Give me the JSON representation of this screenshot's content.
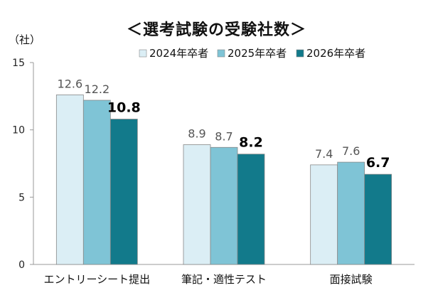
{
  "chart_data": {
    "type": "bar",
    "title": "＜選考試験の受験社数＞",
    "y_unit": "（社）",
    "xlabel": "",
    "ylabel": "",
    "categories": [
      "エントリーシート提出",
      "筆記・適性テスト",
      "面接試験"
    ],
    "series": [
      {
        "name": "2024年卒者",
        "values": [
          12.6,
          8.9,
          7.4
        ],
        "color": "#dbeef5"
      },
      {
        "name": "2025年卒者",
        "values": [
          12.2,
          8.7,
          7.6
        ],
        "color": "#7fc4d6"
      },
      {
        "name": "2026年卒者",
        "values": [
          10.8,
          8.2,
          6.7
        ],
        "color": "#127a8b"
      }
    ],
    "ylim": [
      0,
      15
    ],
    "yticks": [
      0,
      5,
      10,
      15
    ],
    "legend_position": "top-right",
    "grid": false
  }
}
